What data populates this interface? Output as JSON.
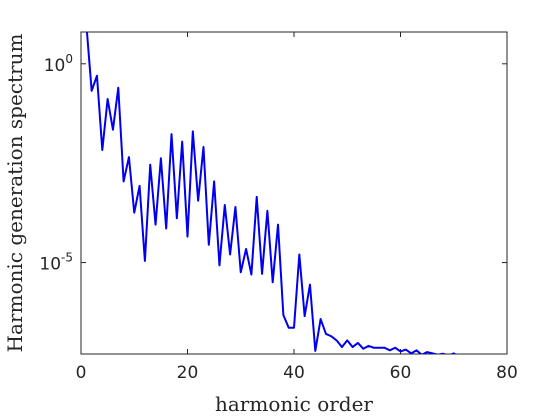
{
  "chart_data": {
    "type": "line",
    "xlabel": "harmonic order",
    "ylabel": "Harmonic generation spectrum",
    "xlim": [
      0,
      80
    ],
    "ylim_log10": [
      -7.3,
      0.8
    ],
    "y_scale": "log",
    "grid": false,
    "line_color": "#0000ee",
    "x_ticks": [
      {
        "value": 0,
        "label": "0"
      },
      {
        "value": 20,
        "label": "20"
      },
      {
        "value": 40,
        "label": "40"
      },
      {
        "value": 60,
        "label": "60"
      },
      {
        "value": 80,
        "label": "80"
      }
    ],
    "y_ticks": [
      {
        "log10": 0,
        "base": "10",
        "exp": "0"
      },
      {
        "log10": -5,
        "base": "10",
        "exp": "-5"
      }
    ],
    "series": [
      {
        "x": [
          1,
          2,
          3,
          4,
          5,
          6,
          7,
          8,
          9,
          10,
          11,
          12,
          13,
          14,
          15,
          16,
          17,
          18,
          19,
          20,
          21,
          22,
          23,
          24,
          25,
          26,
          27,
          28,
          29,
          30,
          31,
          32,
          33,
          34,
          35,
          36,
          37,
          38,
          39,
          40,
          41,
          42,
          43,
          44,
          45,
          46,
          47,
          48,
          49,
          50,
          51,
          52,
          53,
          54,
          55,
          56,
          57,
          58,
          59,
          60,
          61,
          62,
          63,
          64,
          65,
          66,
          67,
          68,
          69,
          70,
          71,
          72,
          73,
          74,
          75,
          76,
          77,
          78,
          79,
          80
        ],
        "y": [
          10,
          0.21,
          0.5,
          0.0068,
          0.13,
          0.022,
          0.25,
          0.0011,
          0.0045,
          0.00018,
          0.00085,
          1.1e-05,
          0.0029,
          9e-05,
          0.0042,
          7.2e-05,
          0.017,
          0.00013,
          0.011,
          4.5e-05,
          0.02,
          0.00036,
          0.0081,
          2.8e-05,
          0.0011,
          8.5e-06,
          0.00028,
          1.6e-05,
          0.00025,
          5.7e-06,
          2.2e-05,
          5e-06,
          0.00045,
          5.2e-06,
          0.0002,
          3.2e-06,
          9e-05,
          4.8e-07,
          2.3e-07,
          2.3e-07,
          1.6e-05,
          4.5e-07,
          2.8e-06,
          6e-08,
          3.8e-07,
          1.6e-07,
          1.4e-07,
          1.1e-07,
          7.5e-08,
          1.1e-07,
          7.5e-08,
          9.5e-08,
          6.8e-08,
          8e-08,
          7.2e-08,
          7.2e-08,
          7.2e-08,
          6.2e-08,
          7.2e-08,
          5.8e-08,
          6.5e-08,
          5.2e-08,
          6.2e-08,
          4.8e-08,
          5.6e-08,
          5.2e-08,
          4.8e-08,
          5.1e-08,
          4.5e-08,
          5.2e-08,
          4.2e-08,
          4.8e-08,
          3.9e-08,
          4.6e-08,
          3.8e-08,
          3.9e-08,
          3.6e-08,
          3.8e-08,
          3.4e-08,
          3.5e-08
        ]
      }
    ]
  }
}
